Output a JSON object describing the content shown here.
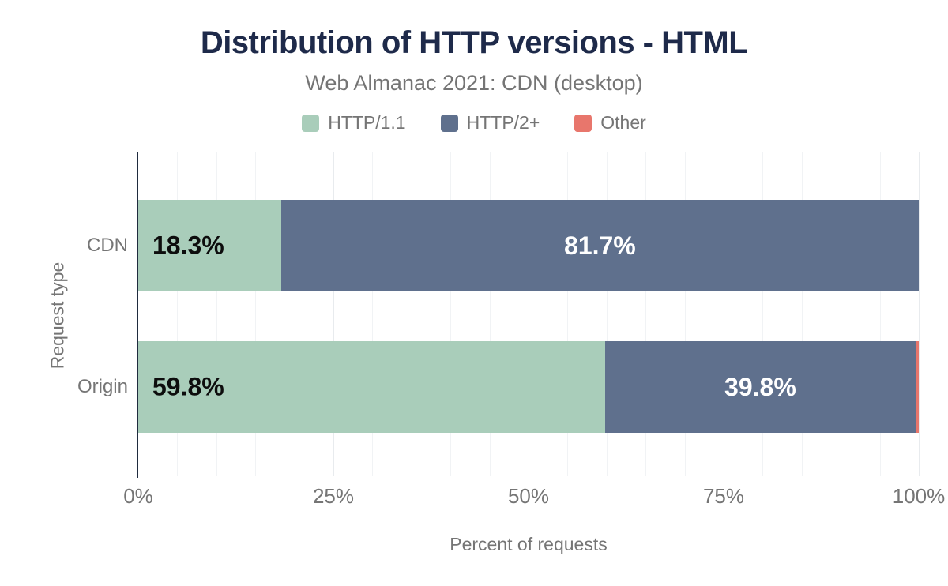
{
  "chart_data": {
    "type": "bar",
    "orientation": "horizontal",
    "stacked": true,
    "title": "Distribution of HTTP versions - HTML",
    "subtitle": "Web Almanac 2021: CDN (desktop)",
    "xlabel": "Percent of requests",
    "ylabel": "Request type",
    "categories": [
      "CDN",
      "Origin"
    ],
    "series": [
      {
        "name": "HTTP/1.1",
        "color": "#a9cdba",
        "label_color": "#0d0d0d",
        "label_align": "left",
        "values": [
          18.3,
          59.8
        ],
        "labels": [
          "18.3%",
          "59.8%"
        ]
      },
      {
        "name": "HTTP/2+",
        "color": "#5f708d",
        "label_color": "#ffffff",
        "label_align": "center",
        "values": [
          81.7,
          39.8
        ],
        "labels": [
          "81.7%",
          "39.8%"
        ]
      },
      {
        "name": "Other",
        "color": "#e8766c",
        "label_color": "#ffffff",
        "label_align": "center",
        "values": [
          0,
          0.4
        ],
        "labels": [
          "",
          ""
        ]
      }
    ],
    "xlim": [
      0,
      100
    ],
    "xticks": [
      {
        "label": "0%",
        "value": 0
      },
      {
        "label": "25%",
        "value": 25
      },
      {
        "label": "50%",
        "value": 50
      },
      {
        "label": "75%",
        "value": 75
      },
      {
        "label": "100%",
        "value": 100
      }
    ],
    "grid": "vertical lines every 5%, major every 25%",
    "legend_position": "top",
    "colors": {
      "title": "#1e2a4a",
      "muted_text": "#757575",
      "axis_line": "#1f2b3e",
      "grid_minor": "#f1f3f5",
      "grid_major": "#e8ebee",
      "background": "#ffffff"
    }
  }
}
